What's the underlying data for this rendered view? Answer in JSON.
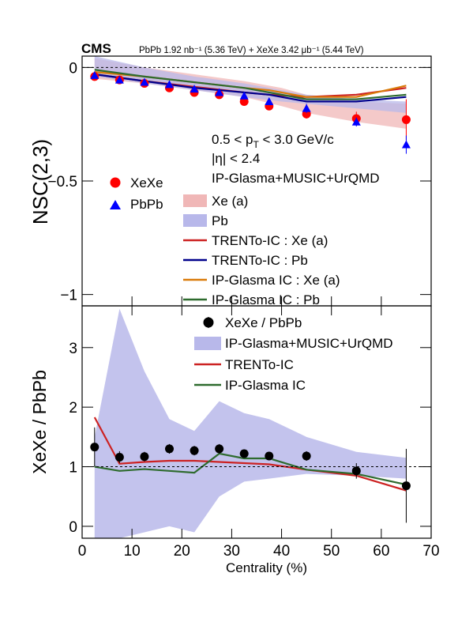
{
  "header": {
    "experiment": "CMS",
    "lumi_label": "PbPb 1.92 nb⁻¹ (5.36 TeV) + XeXe 3.42 μb⁻¹ (5.44 TeV)"
  },
  "chart_data": [
    {
      "type": "scatter",
      "panel": "top",
      "ylabel": "NSC(2,3)",
      "xlim": [
        0,
        70
      ],
      "ylim": [
        -1.05,
        0.05
      ],
      "y_ticks": [
        0,
        -0.5,
        -1
      ],
      "y_tick_labels": [
        "0",
        "−0.5",
        "−1"
      ],
      "reference_line": 0,
      "annotations": [
        "0.5 < p_T < 3.0 GeV/c",
        "|η| < 2.4",
        "IP-Glasma+MUSIC+UrQMD"
      ],
      "legend_left": [
        "XeXe",
        "PbPb"
      ],
      "legend_right": [
        "Xe (a)",
        "Pb",
        "TRENTo-IC : Xe (a)",
        "TRENTo-IC : Pb",
        "IP-Glasma IC : Xe (a)",
        "IP-Glasma IC : Pb"
      ],
      "markers": [
        {
          "name": "XeXe",
          "shape": "circle",
          "color": "#ff0000",
          "x": [
            2.5,
            7.5,
            12.5,
            17.5,
            22.5,
            27.5,
            32.5,
            37.5,
            45,
            55,
            65
          ],
          "y": [
            -0.04,
            -0.055,
            -0.07,
            -0.09,
            -0.11,
            -0.12,
            -0.15,
            -0.17,
            -0.205,
            -0.225,
            -0.23
          ],
          "err": [
            0.01,
            0.01,
            0.01,
            0.01,
            0.012,
            0.012,
            0.015,
            0.015,
            0.02,
            0.03,
            0.09
          ]
        },
        {
          "name": "PbPb",
          "shape": "triangle",
          "color": "#0000ff",
          "x": [
            2.5,
            7.5,
            12.5,
            17.5,
            22.5,
            27.5,
            32.5,
            37.5,
            45,
            55,
            65
          ],
          "y": [
            -0.035,
            -0.055,
            -0.065,
            -0.075,
            -0.095,
            -0.11,
            -0.125,
            -0.15,
            -0.18,
            -0.24,
            -0.34
          ],
          "err": [
            0.008,
            0.008,
            0.008,
            0.01,
            0.01,
            0.01,
            0.012,
            0.015,
            0.02,
            0.02,
            0.04
          ]
        }
      ],
      "bands": [
        {
          "name": "Xe (a)",
          "color": "#f0b7b7",
          "x": [
            2.5,
            12.5,
            22.5,
            32.5,
            40,
            45,
            55,
            65
          ],
          "upper": [
            0.04,
            0.0,
            -0.03,
            -0.06,
            -0.09,
            -0.12,
            -0.15,
            -0.16
          ],
          "lower": [
            -0.05,
            -0.07,
            -0.1,
            -0.13,
            -0.17,
            -0.2,
            -0.24,
            -0.27
          ]
        },
        {
          "name": "Pb",
          "color": "#b8b8ea",
          "x": [
            2.5,
            12.5,
            22.5,
            32.5,
            40,
            45,
            55,
            65
          ],
          "upper": [
            0.05,
            0.0,
            -0.04,
            -0.07,
            -0.1,
            -0.12,
            -0.14,
            -0.15
          ],
          "lower": [
            -0.04,
            -0.07,
            -0.1,
            -0.13,
            -0.15,
            -0.16,
            -0.18,
            -0.2
          ]
        }
      ],
      "lines": [
        {
          "name": "TRENTo-IC : Xe (a)",
          "color": "#cc2222",
          "x": [
            2.5,
            12.5,
            22.5,
            32.5,
            37.5,
            45,
            55,
            65
          ],
          "y": [
            -0.03,
            -0.06,
            -0.085,
            -0.11,
            -0.12,
            -0.13,
            -0.12,
            -0.09
          ]
        },
        {
          "name": "TRENTo-IC : Pb",
          "color": "#00008b",
          "x": [
            2.5,
            12.5,
            22.5,
            32.5,
            37.5,
            45,
            55,
            65
          ],
          "y": [
            -0.03,
            -0.06,
            -0.09,
            -0.11,
            -0.12,
            -0.15,
            -0.15,
            -0.13
          ]
        },
        {
          "name": "IP-Glasma IC : Xe (a)",
          "color": "#d97b0a",
          "x": [
            2.5,
            12.5,
            22.5,
            32.5,
            37.5,
            45,
            55,
            65
          ],
          "y": [
            -0.02,
            -0.04,
            -0.065,
            -0.09,
            -0.1,
            -0.13,
            -0.13,
            -0.08
          ]
        },
        {
          "name": "IP-Glasma IC : Pb",
          "color": "#2e6b2e",
          "x": [
            2.5,
            12.5,
            22.5,
            32.5,
            37.5,
            45,
            55,
            65
          ],
          "y": [
            -0.01,
            -0.04,
            -0.065,
            -0.09,
            -0.11,
            -0.14,
            -0.14,
            -0.12
          ]
        }
      ]
    },
    {
      "type": "scatter",
      "panel": "bottom",
      "xlabel": "Centrality (%)",
      "ylabel": "XeXe / PbPb",
      "xlim": [
        0,
        70
      ],
      "ylim": [
        -0.2,
        3.7
      ],
      "x_ticks": [
        0,
        10,
        20,
        30,
        40,
        50,
        60,
        70
      ],
      "y_ticks": [
        0,
        1,
        2,
        3
      ],
      "reference_line": 1,
      "legend": [
        "XeXe / PbPb",
        "IP-Glasma+MUSIC+UrQMD",
        "TRENTo-IC",
        "IP-Glasma IC"
      ],
      "points": {
        "name": "XeXe / PbPb",
        "color": "#000000",
        "x": [
          2.5,
          7.5,
          12.5,
          17.5,
          22.5,
          27.5,
          32.5,
          37.5,
          45,
          55,
          65
        ],
        "y": [
          1.33,
          1.16,
          1.17,
          1.3,
          1.27,
          1.3,
          1.22,
          1.18,
          1.18,
          0.93,
          0.68
        ],
        "err": [
          0.33,
          0.1,
          0.08,
          0.08,
          0.08,
          0.08,
          0.07,
          0.07,
          0.08,
          0.13,
          0.62
        ]
      },
      "band": {
        "name": "IP-Glasma+MUSIC+UrQMD",
        "color": "#b8b8ea",
        "x": [
          2.5,
          7.5,
          12.5,
          17.5,
          22.5,
          27.5,
          32.5,
          37.5,
          45,
          55,
          65
        ],
        "upper": [
          1.5,
          3.65,
          2.6,
          1.8,
          1.6,
          2.1,
          1.9,
          1.8,
          1.5,
          1.25,
          1.15
        ],
        "lower": [
          -0.2,
          -0.2,
          -0.1,
          0.0,
          -0.1,
          0.5,
          0.75,
          0.8,
          0.88,
          0.85,
          0.8
        ]
      },
      "lines": [
        {
          "name": "TRENTo-IC",
          "color": "#cc2222",
          "x": [
            2.5,
            7.5,
            12.5,
            17.5,
            22.5,
            27.5,
            32.5,
            37.5,
            45,
            55,
            65
          ],
          "y": [
            1.83,
            1.05,
            1.08,
            1.1,
            1.1,
            1.08,
            1.06,
            1.04,
            0.95,
            0.85,
            0.6
          ]
        },
        {
          "name": "IP-Glasma IC",
          "color": "#2e6b2e",
          "x": [
            2.5,
            7.5,
            12.5,
            17.5,
            22.5,
            27.5,
            32.5,
            37.5,
            45,
            55,
            65
          ],
          "y": [
            1.0,
            0.93,
            0.96,
            0.93,
            0.9,
            1.22,
            1.14,
            1.14,
            0.95,
            0.88,
            0.7
          ]
        }
      ]
    }
  ]
}
